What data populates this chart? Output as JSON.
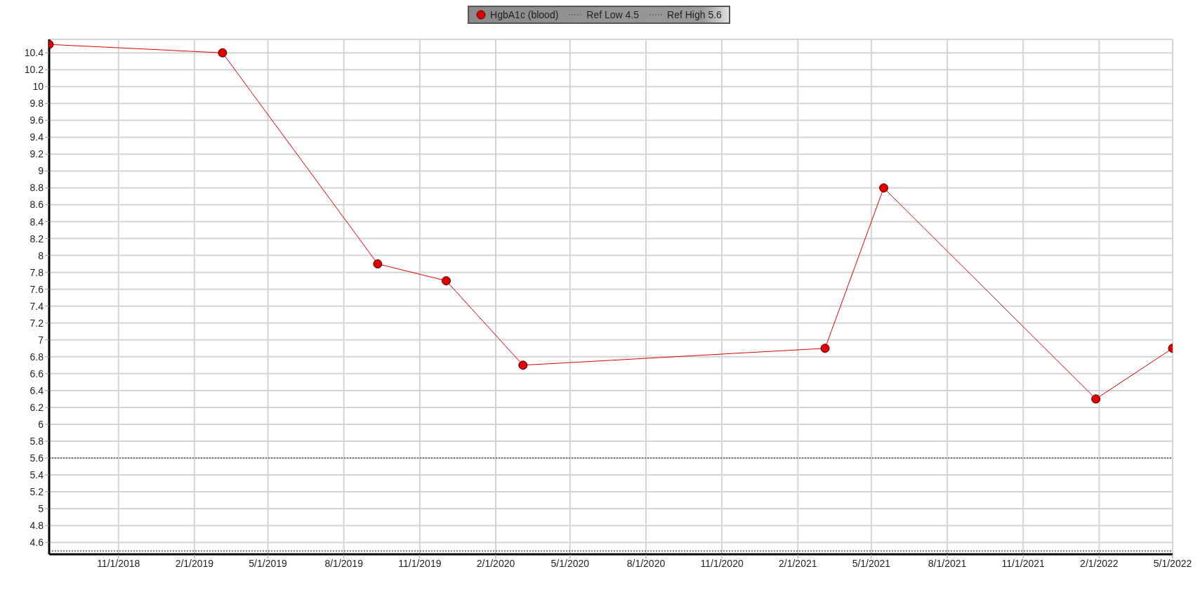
{
  "chart_data": {
    "type": "line",
    "x": [
      "2018-08-09",
      "2019-03-07",
      "2019-09-11",
      "2019-12-03",
      "2020-03-05",
      "2021-03-06",
      "2021-05-16",
      "2022-01-28",
      "2022-05-01"
    ],
    "series": [
      {
        "name": "HgbA1c (blood)",
        "color": "#e00000",
        "values": [
          10.5,
          10.4,
          7.9,
          7.7,
          6.7,
          6.9,
          8.8,
          6.3,
          6.9
        ]
      }
    ],
    "xlim": [
      "2018-08-09",
      "2022-05-01"
    ],
    "xticks": [
      {
        "value": "2018-11-01",
        "label": "11/1/2018"
      },
      {
        "value": "2019-02-01",
        "label": "2/1/2019"
      },
      {
        "value": "2019-05-01",
        "label": "5/1/2019"
      },
      {
        "value": "2019-08-01",
        "label": "8/1/2019"
      },
      {
        "value": "2019-11-01",
        "label": "11/1/2019"
      },
      {
        "value": "2020-02-01",
        "label": "2/1/2020"
      },
      {
        "value": "2020-05-01",
        "label": "5/1/2020"
      },
      {
        "value": "2020-08-01",
        "label": "8/1/2020"
      },
      {
        "value": "2020-11-01",
        "label": "11/1/2020"
      },
      {
        "value": "2021-02-01",
        "label": "2/1/2021"
      },
      {
        "value": "2021-05-01",
        "label": "5/1/2021"
      },
      {
        "value": "2021-08-01",
        "label": "8/1/2021"
      },
      {
        "value": "2021-11-01",
        "label": "11/1/2021"
      },
      {
        "value": "2022-02-01",
        "label": "2/1/2022"
      },
      {
        "value": "2022-05-01",
        "label": "5/1/2022"
      }
    ],
    "ylim": [
      4.46,
      10.56
    ],
    "yticks": [
      4.6,
      4.8,
      5,
      5.2,
      5.4,
      5.6,
      5.8,
      6,
      6.2,
      6.4,
      6.6,
      6.8,
      7,
      7.2,
      7.4,
      7.6,
      7.8,
      8,
      8.2,
      8.4,
      8.6,
      8.8,
      9,
      9.2,
      9.4,
      9.6,
      9.8,
      10,
      10.2,
      10.4
    ],
    "ref_lines": [
      {
        "axis": "y",
        "value": 4.5,
        "label": "Ref Low 4.5",
        "color": "#555555",
        "line_style": "dotted"
      },
      {
        "axis": "y",
        "value": 5.6,
        "label": "Ref High 5.6",
        "color": "#555555",
        "line_style": "dotted"
      }
    ],
    "grid": true,
    "legend": "top",
    "marker": "circle",
    "line_style": "solid"
  }
}
